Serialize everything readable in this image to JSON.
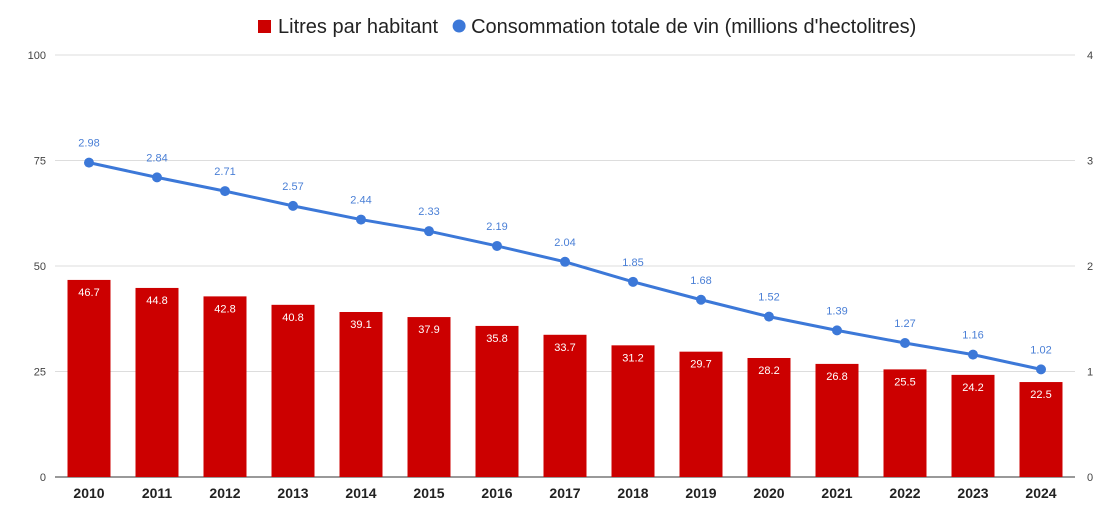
{
  "chart_data": {
    "type": "bar",
    "title": "",
    "xlabel": "",
    "ylabel": "",
    "categories": [
      "2010",
      "2011",
      "2012",
      "2013",
      "2014",
      "2015",
      "2016",
      "2017",
      "2018",
      "2019",
      "2020",
      "2021",
      "2022",
      "2023",
      "2024"
    ],
    "series": [
      {
        "name": "Litres par habitant",
        "type": "bar",
        "axis": "left",
        "color": "#cc0000",
        "values": [
          46.7,
          44.8,
          42.8,
          40.8,
          39.1,
          37.9,
          35.8,
          33.7,
          31.2,
          29.7,
          28.2,
          26.8,
          25.5,
          24.2,
          22.5
        ],
        "labels": [
          "46.7",
          "44.8",
          "42.8",
          "40.8",
          "39.1",
          "37.9",
          "35.8",
          "33.7",
          "31.2",
          "29.7",
          "28.2",
          "26.8",
          "25.5",
          "24.2",
          "22.5"
        ]
      },
      {
        "name": "Consommation totale de vin (millions d'hectolitres)",
        "type": "line",
        "axis": "right",
        "color": "#3c78d8",
        "values": [
          2.98,
          2.84,
          2.71,
          2.57,
          2.44,
          2.33,
          2.19,
          2.04,
          1.85,
          1.68,
          1.52,
          1.39,
          1.27,
          1.16,
          1.02
        ],
        "labels": [
          "2.98",
          "2.84",
          "2.71",
          "2.57",
          "2.44",
          "2.33",
          "2.19",
          "2.04",
          "1.85",
          "1.68",
          "1.52",
          "1.39",
          "1.27",
          "1.16",
          "1.02"
        ]
      }
    ],
    "y_left": {
      "ylim": [
        0,
        100
      ],
      "ticks": [
        0,
        25,
        50,
        75,
        100
      ],
      "tick_labels": [
        "0",
        "25",
        "50",
        "75",
        "100"
      ]
    },
    "y_right": {
      "ylim": [
        0,
        4
      ],
      "ticks": [
        0,
        1,
        2,
        3,
        4
      ],
      "tick_labels": [
        "0",
        "1",
        "2",
        "3",
        "4"
      ]
    },
    "grid": true,
    "legend_position": "top-center"
  }
}
